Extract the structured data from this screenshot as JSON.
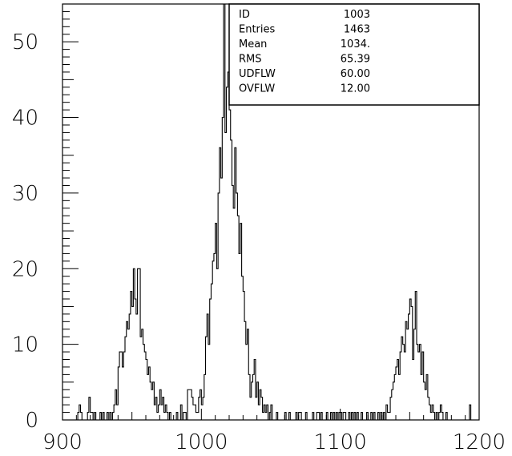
{
  "chart_data": {
    "type": "histogram",
    "title": "",
    "xlabel": "",
    "ylabel": "",
    "xlim": [
      900,
      1200
    ],
    "ylim": [
      0,
      55
    ],
    "x_ticks": [
      900,
      1000,
      1100,
      1200
    ],
    "y_ticks": [
      0,
      10,
      20,
      30,
      40,
      50
    ],
    "bin_width": 1,
    "grid": false,
    "stats_box": {
      "placement": "top-right",
      "rows": [
        {
          "label": "ID",
          "value": "1003"
        },
        {
          "label": "Entries",
          "value": "1463"
        },
        {
          "label": "Mean",
          "value": "1034."
        },
        {
          "label": "RMS",
          "value": "65.39"
        },
        {
          "label": "UDFLW",
          "value": "60.00"
        },
        {
          "label": "OVFLW",
          "value": "12.00"
        }
      ]
    },
    "bins": [
      [
        911,
        1
      ],
      [
        912,
        2
      ],
      [
        913,
        1
      ],
      [
        918,
        1
      ],
      [
        919,
        3
      ],
      [
        920,
        1
      ],
      [
        921,
        1
      ],
      [
        923,
        1
      ],
      [
        927,
        1
      ],
      [
        929,
        1
      ],
      [
        932,
        1
      ],
      [
        934,
        1
      ],
      [
        936,
        1
      ],
      [
        937,
        2
      ],
      [
        938,
        4
      ],
      [
        939,
        2
      ],
      [
        940,
        7
      ],
      [
        941,
        9
      ],
      [
        942,
        9
      ],
      [
        943,
        7
      ],
      [
        944,
        9
      ],
      [
        945,
        11
      ],
      [
        946,
        13
      ],
      [
        947,
        12
      ],
      [
        948,
        14
      ],
      [
        949,
        17
      ],
      [
        950,
        15
      ],
      [
        951,
        20
      ],
      [
        952,
        16
      ],
      [
        953,
        14
      ],
      [
        954,
        20
      ],
      [
        955,
        20
      ],
      [
        956,
        11
      ],
      [
        957,
        12
      ],
      [
        958,
        10
      ],
      [
        959,
        9
      ],
      [
        960,
        8
      ],
      [
        961,
        6
      ],
      [
        962,
        7
      ],
      [
        963,
        5
      ],
      [
        964,
        4
      ],
      [
        965,
        5
      ],
      [
        966,
        2
      ],
      [
        967,
        3
      ],
      [
        968,
        1
      ],
      [
        969,
        2
      ],
      [
        970,
        4
      ],
      [
        971,
        2
      ],
      [
        972,
        3
      ],
      [
        973,
        1
      ],
      [
        974,
        2
      ],
      [
        975,
        1
      ],
      [
        977,
        1
      ],
      [
        982,
        1
      ],
      [
        985,
        2
      ],
      [
        987,
        1
      ],
      [
        988,
        1
      ],
      [
        990,
        4
      ],
      [
        991,
        4
      ],
      [
        992,
        4
      ],
      [
        993,
        3
      ],
      [
        994,
        2
      ],
      [
        995,
        2
      ],
      [
        996,
        1
      ],
      [
        997,
        1
      ],
      [
        998,
        3
      ],
      [
        999,
        4
      ],
      [
        1000,
        2
      ],
      [
        1001,
        3
      ],
      [
        1002,
        6
      ],
      [
        1003,
        11
      ],
      [
        1004,
        14
      ],
      [
        1005,
        10
      ],
      [
        1006,
        16
      ],
      [
        1007,
        18
      ],
      [
        1008,
        21
      ],
      [
        1009,
        22
      ],
      [
        1010,
        26
      ],
      [
        1011,
        20
      ],
      [
        1012,
        30
      ],
      [
        1013,
        36
      ],
      [
        1014,
        32
      ],
      [
        1015,
        40
      ],
      [
        1016,
        55
      ],
      [
        1017,
        38
      ],
      [
        1018,
        44
      ],
      [
        1019,
        46
      ],
      [
        1020,
        41
      ],
      [
        1021,
        37
      ],
      [
        1022,
        31
      ],
      [
        1023,
        28
      ],
      [
        1024,
        36
      ],
      [
        1025,
        30
      ],
      [
        1026,
        27
      ],
      [
        1027,
        22
      ],
      [
        1028,
        26
      ],
      [
        1029,
        19
      ],
      [
        1030,
        17
      ],
      [
        1031,
        13
      ],
      [
        1032,
        10
      ],
      [
        1033,
        12
      ],
      [
        1034,
        6
      ],
      [
        1035,
        3
      ],
      [
        1036,
        5
      ],
      [
        1037,
        6
      ],
      [
        1038,
        8
      ],
      [
        1039,
        3
      ],
      [
        1040,
        5
      ],
      [
        1041,
        2
      ],
      [
        1042,
        4
      ],
      [
        1043,
        3
      ],
      [
        1044,
        1
      ],
      [
        1045,
        2
      ],
      [
        1046,
        1
      ],
      [
        1047,
        2
      ],
      [
        1049,
        1
      ],
      [
        1050,
        2
      ],
      [
        1054,
        1
      ],
      [
        1060,
        1
      ],
      [
        1063,
        1
      ],
      [
        1068,
        1
      ],
      [
        1070,
        1
      ],
      [
        1071,
        1
      ],
      [
        1075,
        1
      ],
      [
        1080,
        1
      ],
      [
        1083,
        1
      ],
      [
        1084,
        1
      ],
      [
        1086,
        1
      ],
      [
        1090,
        1
      ],
      [
        1093,
        1
      ],
      [
        1095,
        1
      ],
      [
        1097,
        1
      ],
      [
        1099,
        1
      ],
      [
        1100,
        1
      ],
      [
        1102,
        1
      ],
      [
        1103,
        1
      ],
      [
        1106,
        1
      ],
      [
        1108,
        1
      ],
      [
        1110,
        1
      ],
      [
        1112,
        1
      ],
      [
        1115,
        1
      ],
      [
        1119,
        1
      ],
      [
        1122,
        1
      ],
      [
        1124,
        1
      ],
      [
        1127,
        1
      ],
      [
        1129,
        1
      ],
      [
        1131,
        1
      ],
      [
        1133,
        2
      ],
      [
        1134,
        1
      ],
      [
        1135,
        1
      ],
      [
        1136,
        3
      ],
      [
        1137,
        4
      ],
      [
        1138,
        5
      ],
      [
        1139,
        6
      ],
      [
        1140,
        7
      ],
      [
        1141,
        8
      ],
      [
        1142,
        6
      ],
      [
        1143,
        9
      ],
      [
        1144,
        11
      ],
      [
        1145,
        10
      ],
      [
        1146,
        9
      ],
      [
        1147,
        13
      ],
      [
        1148,
        12
      ],
      [
        1149,
        14
      ],
      [
        1150,
        16
      ],
      [
        1151,
        15
      ],
      [
        1152,
        8
      ],
      [
        1153,
        12
      ],
      [
        1154,
        17
      ],
      [
        1155,
        10
      ],
      [
        1156,
        9
      ],
      [
        1157,
        10
      ],
      [
        1158,
        6
      ],
      [
        1159,
        9
      ],
      [
        1160,
        5
      ],
      [
        1161,
        4
      ],
      [
        1162,
        6
      ],
      [
        1163,
        3
      ],
      [
        1164,
        2
      ],
      [
        1165,
        1
      ],
      [
        1166,
        2
      ],
      [
        1167,
        1
      ],
      [
        1169,
        1
      ],
      [
        1171,
        1
      ],
      [
        1172,
        2
      ],
      [
        1173,
        1
      ],
      [
        1176,
        1
      ],
      [
        1193,
        2
      ]
    ]
  }
}
